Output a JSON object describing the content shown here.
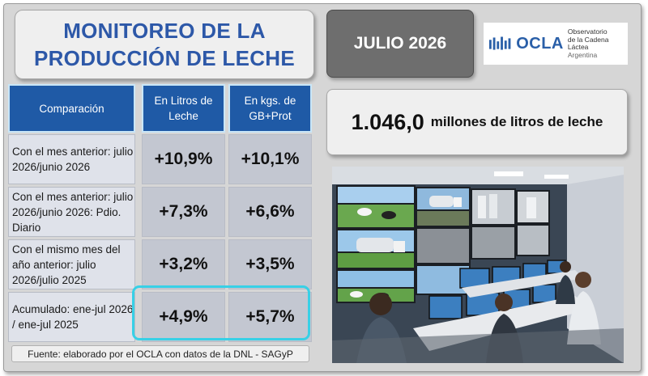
{
  "title": {
    "line1": "MONITOREO DE LA",
    "line2": "PRODUCCIÓN DE LECHE"
  },
  "period": "JULIO 2026",
  "logo": {
    "word": "OCLA",
    "line1": "Observatorio",
    "line2": "de la Cadena Láctea",
    "line3": "Argentina",
    "brand_color": "#2a5fa8"
  },
  "table": {
    "headers": [
      "Comparación",
      "En Litros de Leche",
      "En kgs. de GB+Prot"
    ],
    "rows": [
      {
        "label": "Con el mes anterior: julio 2026/junio 2026",
        "litros": "+10,9%",
        "kgs": "+10,1%"
      },
      {
        "label": "Con el mes anterior: julio 2026/junio 2026: Pdio. Diario",
        "litros": "+7,3%",
        "kgs": "+6,6%"
      },
      {
        "label": "Con el mismo mes del año anterior: julio 2026/julio 2025",
        "litros": "+3,2%",
        "kgs": "+3,5%"
      },
      {
        "label": "Acumulado: ene-jul 2026 / ene-jul 2025",
        "litros": "+4,9%",
        "kgs": "+5,7%"
      }
    ],
    "header_color": "#1f5aa6",
    "highlight_color": "#38d0e6"
  },
  "total": {
    "value": "1.046,0",
    "unit": "millones de litros de leche"
  },
  "source": "Fuente: elaborado por el OCLA con datos de la DNL - SAGyP"
}
